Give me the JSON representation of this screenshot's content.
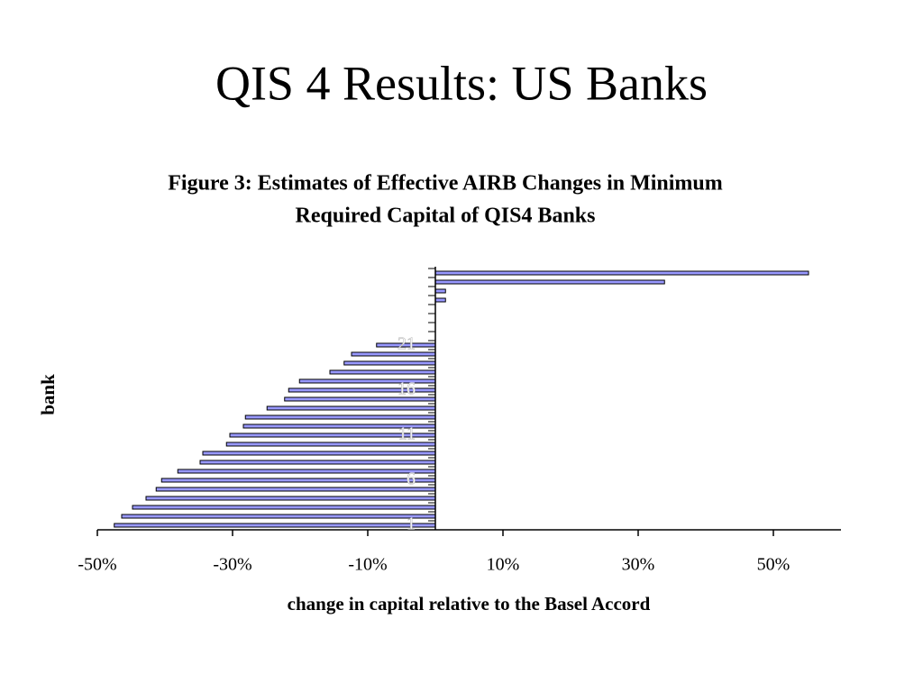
{
  "slide_title": "QIS 4 Results: US Banks",
  "chart_data": {
    "type": "bar",
    "orientation": "horizontal",
    "title": [
      "Figure 3: Estimates of Effective AIRB Changes in Minimum",
      "Required Capital of QIS4 Banks"
    ],
    "x_label": "change in capital relative to the Basel Accord",
    "y_label": "bank",
    "categories": [
      "1",
      null,
      null,
      null,
      null,
      "6",
      null,
      null,
      null,
      null,
      "11",
      null,
      null,
      null,
      null,
      "16",
      null,
      null,
      null,
      null,
      "21",
      null,
      null,
      null,
      null,
      null,
      null,
      null,
      null
    ],
    "values": [
      -47.5,
      -46.4,
      -44.8,
      -42.8,
      -41.3,
      -40.5,
      -38.1,
      -34.8,
      -34.4,
      -30.9,
      -30.4,
      -28.4,
      -28.1,
      -24.9,
      -22.3,
      -21.7,
      -20.1,
      -15.6,
      -13.5,
      -12.4,
      -8.7,
      0,
      0,
      0,
      0,
      1.5,
      1.5,
      33.9,
      55.2
    ],
    "color": "#9999ff",
    "xlim": [
      -50,
      60
    ],
    "xticks": [
      {
        "value": -50,
        "label": "-50%"
      },
      {
        "value": -30,
        "label": "-30%"
      },
      {
        "value": -10,
        "label": "-10%"
      },
      {
        "value": 10,
        "label": "10%"
      },
      {
        "value": 30,
        "label": "30%"
      },
      {
        "value": 50,
        "label": "50%"
      }
    ],
    "grid": false
  }
}
